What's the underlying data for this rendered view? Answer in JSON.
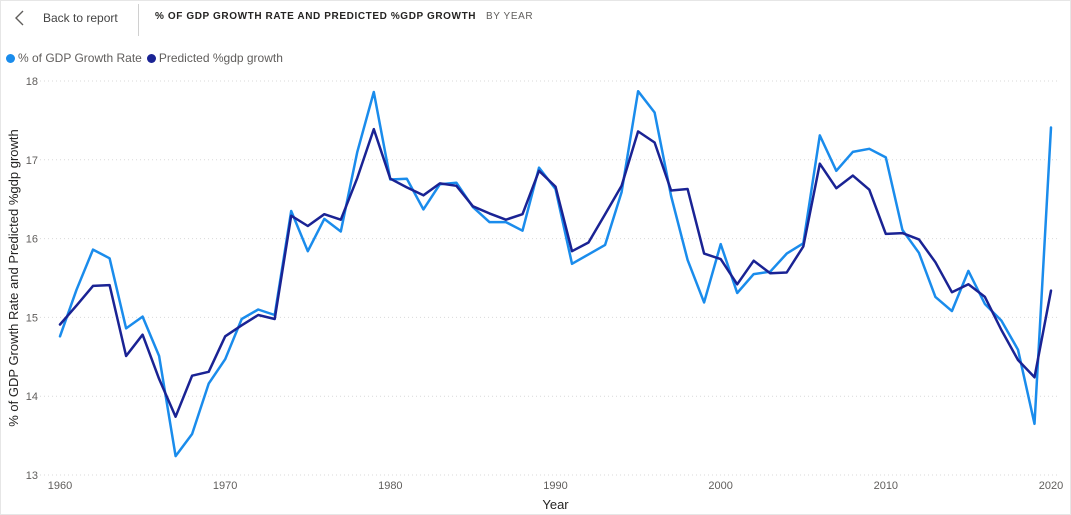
{
  "header": {
    "back_label": "Back to report",
    "title": "% OF GDP GROWTH RATE AND PREDICTED %GDP GROWTH",
    "drill_label": "BY YEAR"
  },
  "colors": {
    "series_1": "#1a8cec",
    "series_2": "#1a2394",
    "grid": "#d9d9d9"
  },
  "icons": {
    "back": "chevron-left-icon"
  },
  "chart_data": {
    "type": "line",
    "xlabel": "Year",
    "ylabel": "% of GDP Growth Rate and Predicted %gdp growth",
    "xlim": [
      1960,
      2020
    ],
    "ylim": [
      13,
      18
    ],
    "x_ticks": [
      1960,
      1970,
      1980,
      1990,
      2000,
      2010,
      2020
    ],
    "y_ticks": [
      13,
      14,
      15,
      16,
      17,
      18
    ],
    "grid": "horizontal dotted",
    "legend_position": "top-left",
    "x": [
      1960,
      1961,
      1962,
      1963,
      1964,
      1965,
      1966,
      1967,
      1968,
      1969,
      1970,
      1971,
      1972,
      1973,
      1974,
      1975,
      1976,
      1977,
      1978,
      1979,
      1980,
      1981,
      1982,
      1983,
      1984,
      1985,
      1986,
      1987,
      1988,
      1989,
      1990,
      1991,
      1992,
      1993,
      1994,
      1995,
      1996,
      1997,
      1998,
      1999,
      2000,
      2001,
      2002,
      2003,
      2004,
      2005,
      2006,
      2007,
      2008,
      2009,
      2010,
      2011,
      2012,
      2013,
      2014,
      2015,
      2016,
      2017,
      2018,
      2019,
      2020
    ],
    "series": [
      {
        "name": "% of GDP Growth Rate",
        "values": [
          14.76,
          15.35,
          15.86,
          15.75,
          14.86,
          15.01,
          14.51,
          13.24,
          13.52,
          14.16,
          14.47,
          14.98,
          15.1,
          15.03,
          16.35,
          15.84,
          16.25,
          16.09,
          17.1,
          17.86,
          16.75,
          16.76,
          16.37,
          16.69,
          16.71,
          16.4,
          16.21,
          16.21,
          16.1,
          16.9,
          16.63,
          15.68,
          15.8,
          15.92,
          16.59,
          17.87,
          17.6,
          16.54,
          15.73,
          15.19,
          15.93,
          15.31,
          15.55,
          15.58,
          15.81,
          15.94,
          17.31,
          16.86,
          17.1,
          17.14,
          17.03,
          16.11,
          15.82,
          15.26,
          15.08,
          15.59,
          15.17,
          14.96,
          14.59,
          13.65,
          17.41
        ]
      },
      {
        "name": "Predicted %gdp growth",
        "values": [
          14.91,
          15.15,
          15.4,
          15.41,
          14.51,
          14.78,
          14.22,
          13.74,
          14.26,
          14.31,
          14.76,
          14.9,
          15.03,
          14.98,
          16.29,
          16.16,
          16.31,
          16.24,
          16.77,
          17.39,
          16.76,
          16.65,
          16.55,
          16.7,
          16.67,
          16.41,
          16.32,
          16.24,
          16.31,
          16.86,
          16.66,
          15.84,
          15.95,
          16.31,
          16.67,
          17.36,
          17.22,
          16.61,
          16.63,
          15.81,
          15.74,
          15.42,
          15.72,
          15.56,
          15.57,
          15.9,
          16.95,
          16.64,
          16.8,
          16.62,
          16.06,
          16.07,
          15.99,
          15.7,
          15.32,
          15.42,
          15.26,
          14.84,
          14.46,
          14.24,
          15.34
        ]
      }
    ]
  }
}
